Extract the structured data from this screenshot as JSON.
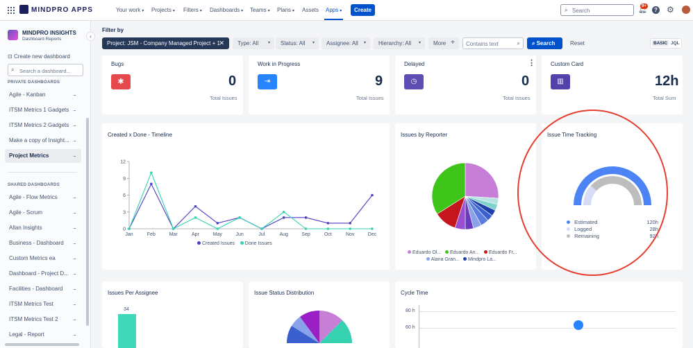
{
  "topbar": {
    "logo_text": "MINDPRO APPS",
    "nav": [
      "Your work",
      "Projects",
      "Filters",
      "Dashboards",
      "Teams",
      "Plans",
      "Assets",
      "Apps"
    ],
    "create_label": "Create",
    "search_placeholder": "Search",
    "notification_badge": "9+"
  },
  "sidebar": {
    "title": "MINDPRO INSIGHTS",
    "subtitle": "Dashboard Reports",
    "create_label": "Create new dashboard",
    "search_placeholder": "Search a dashboard...",
    "private_heading": "PRIVATE DASHBOARDS",
    "private_items": [
      "Agile - Kanban",
      "ITSM Metrics 1 Gadgets",
      "ITSM Metrics 2 Gadgets",
      "Make a copy of Insight...",
      "Project Metrics"
    ],
    "shared_heading": "SHARED DASHBOARDS",
    "shared_items": [
      "Agile - Flow Metrics",
      "Agile - Scrum",
      "Allan Insights",
      "Business - Dashboard",
      "Custom Metrics ea",
      "Dashboard - Project D...",
      "Facilities - Dashboard",
      "ITSM Metrics Test",
      "ITSM Metrics Test 2",
      "Legal - Report"
    ],
    "more_label": "..."
  },
  "filters": {
    "heading": "Filter by",
    "project_chip": "Project: JSM - Company Managed Project + 1",
    "type": "Type: All",
    "status": "Status: All",
    "assignee": "Assignee: All",
    "hierarchy": "Hierarchy: All",
    "more": "More",
    "text_placeholder": "Contains text",
    "search_label": "Search",
    "reset_label": "Reset",
    "mode_basic": "BASIC",
    "mode_jql": "JQL"
  },
  "metrics": [
    {
      "title": "Bugs",
      "value": "0",
      "caption": "Total Issues",
      "color": "#e5484d"
    },
    {
      "title": "Work in Progress",
      "value": "9",
      "caption": "Total Issues",
      "color": "#2684ff"
    },
    {
      "title": "Delayed",
      "value": "0",
      "caption": "Total Issues",
      "color": "#5e4db2"
    },
    {
      "title": "Custom Card",
      "value": "12h",
      "caption": "Total Sum",
      "color": "#5243aa"
    }
  ],
  "timeline": {
    "title": "Created x Done - Timeline",
    "legend": [
      "Created Issues",
      "Done Issues"
    ]
  },
  "reporter": {
    "title": "Issues by Reporter",
    "legend": [
      "Eduardo Ol...",
      "Eduardo An...",
      "Eduardo Fr...",
      "Alana Gran...",
      "Mindpro La..."
    ]
  },
  "time_tracking": {
    "title": "Issue Time Tracking",
    "rows": [
      {
        "label": "Estimated",
        "value": "120h"
      },
      {
        "label": "Logged",
        "value": "28h"
      },
      {
        "label": "Remaining",
        "value": "92h"
      }
    ]
  },
  "assignee": {
    "title": "Issues Per Assignee"
  },
  "status_dist": {
    "title": "Issue Status Distribution"
  },
  "cycle": {
    "title": "Cycle Time",
    "ticks": [
      "80 h",
      "60 h"
    ]
  },
  "chart_data": [
    {
      "type": "line",
      "title": "Created x Done - Timeline",
      "categories": [
        "Jan",
        "Feb",
        "Mar",
        "Apr",
        "May",
        "Jun",
        "Jul",
        "Aug",
        "Sep",
        "Oct",
        "Nov",
        "Dec"
      ],
      "ylim": [
        0,
        12
      ],
      "yticks": [
        0,
        3,
        6,
        9,
        12
      ],
      "series": [
        {
          "name": "Created Issues",
          "color": "#4b3fc4",
          "values": [
            0,
            8,
            0,
            4,
            1,
            2,
            0,
            2,
            2,
            1,
            1,
            6
          ]
        },
        {
          "name": "Done Issues",
          "color": "#36d1b0",
          "values": [
            0,
            10,
            0,
            2,
            0,
            2,
            0,
            3,
            0,
            0,
            0,
            0
          ]
        }
      ]
    },
    {
      "type": "pie",
      "title": "Issues by Reporter",
      "slices": [
        {
          "value": 26,
          "color": "#c77ed6"
        },
        {
          "value": 3,
          "color": "#b7e3e0"
        },
        {
          "value": 3,
          "color": "#7fd3c9"
        },
        {
          "value": 3,
          "color": "#1f3fa8"
        },
        {
          "value": 3,
          "color": "#3a5fcf"
        },
        {
          "value": 4,
          "color": "#5c7de0"
        },
        {
          "value": 4,
          "color": "#8aa2ea"
        },
        {
          "value": 4,
          "color": "#6a3bbf"
        },
        {
          "value": 5,
          "color": "#9a4fd1"
        },
        {
          "value": 11,
          "color": "#c4161c"
        },
        {
          "value": 34,
          "color": "#3fc41a"
        }
      ]
    },
    {
      "type": "pie",
      "title": "Issue Time Tracking",
      "series": [
        {
          "name": "Estimated",
          "value": 120,
          "color": "#4c84f5"
        },
        {
          "name": "Logged",
          "value": 28,
          "color": "#d6dcf5"
        },
        {
          "name": "Remaining",
          "value": 92,
          "color": "#bdbdbd"
        }
      ]
    }
  ]
}
